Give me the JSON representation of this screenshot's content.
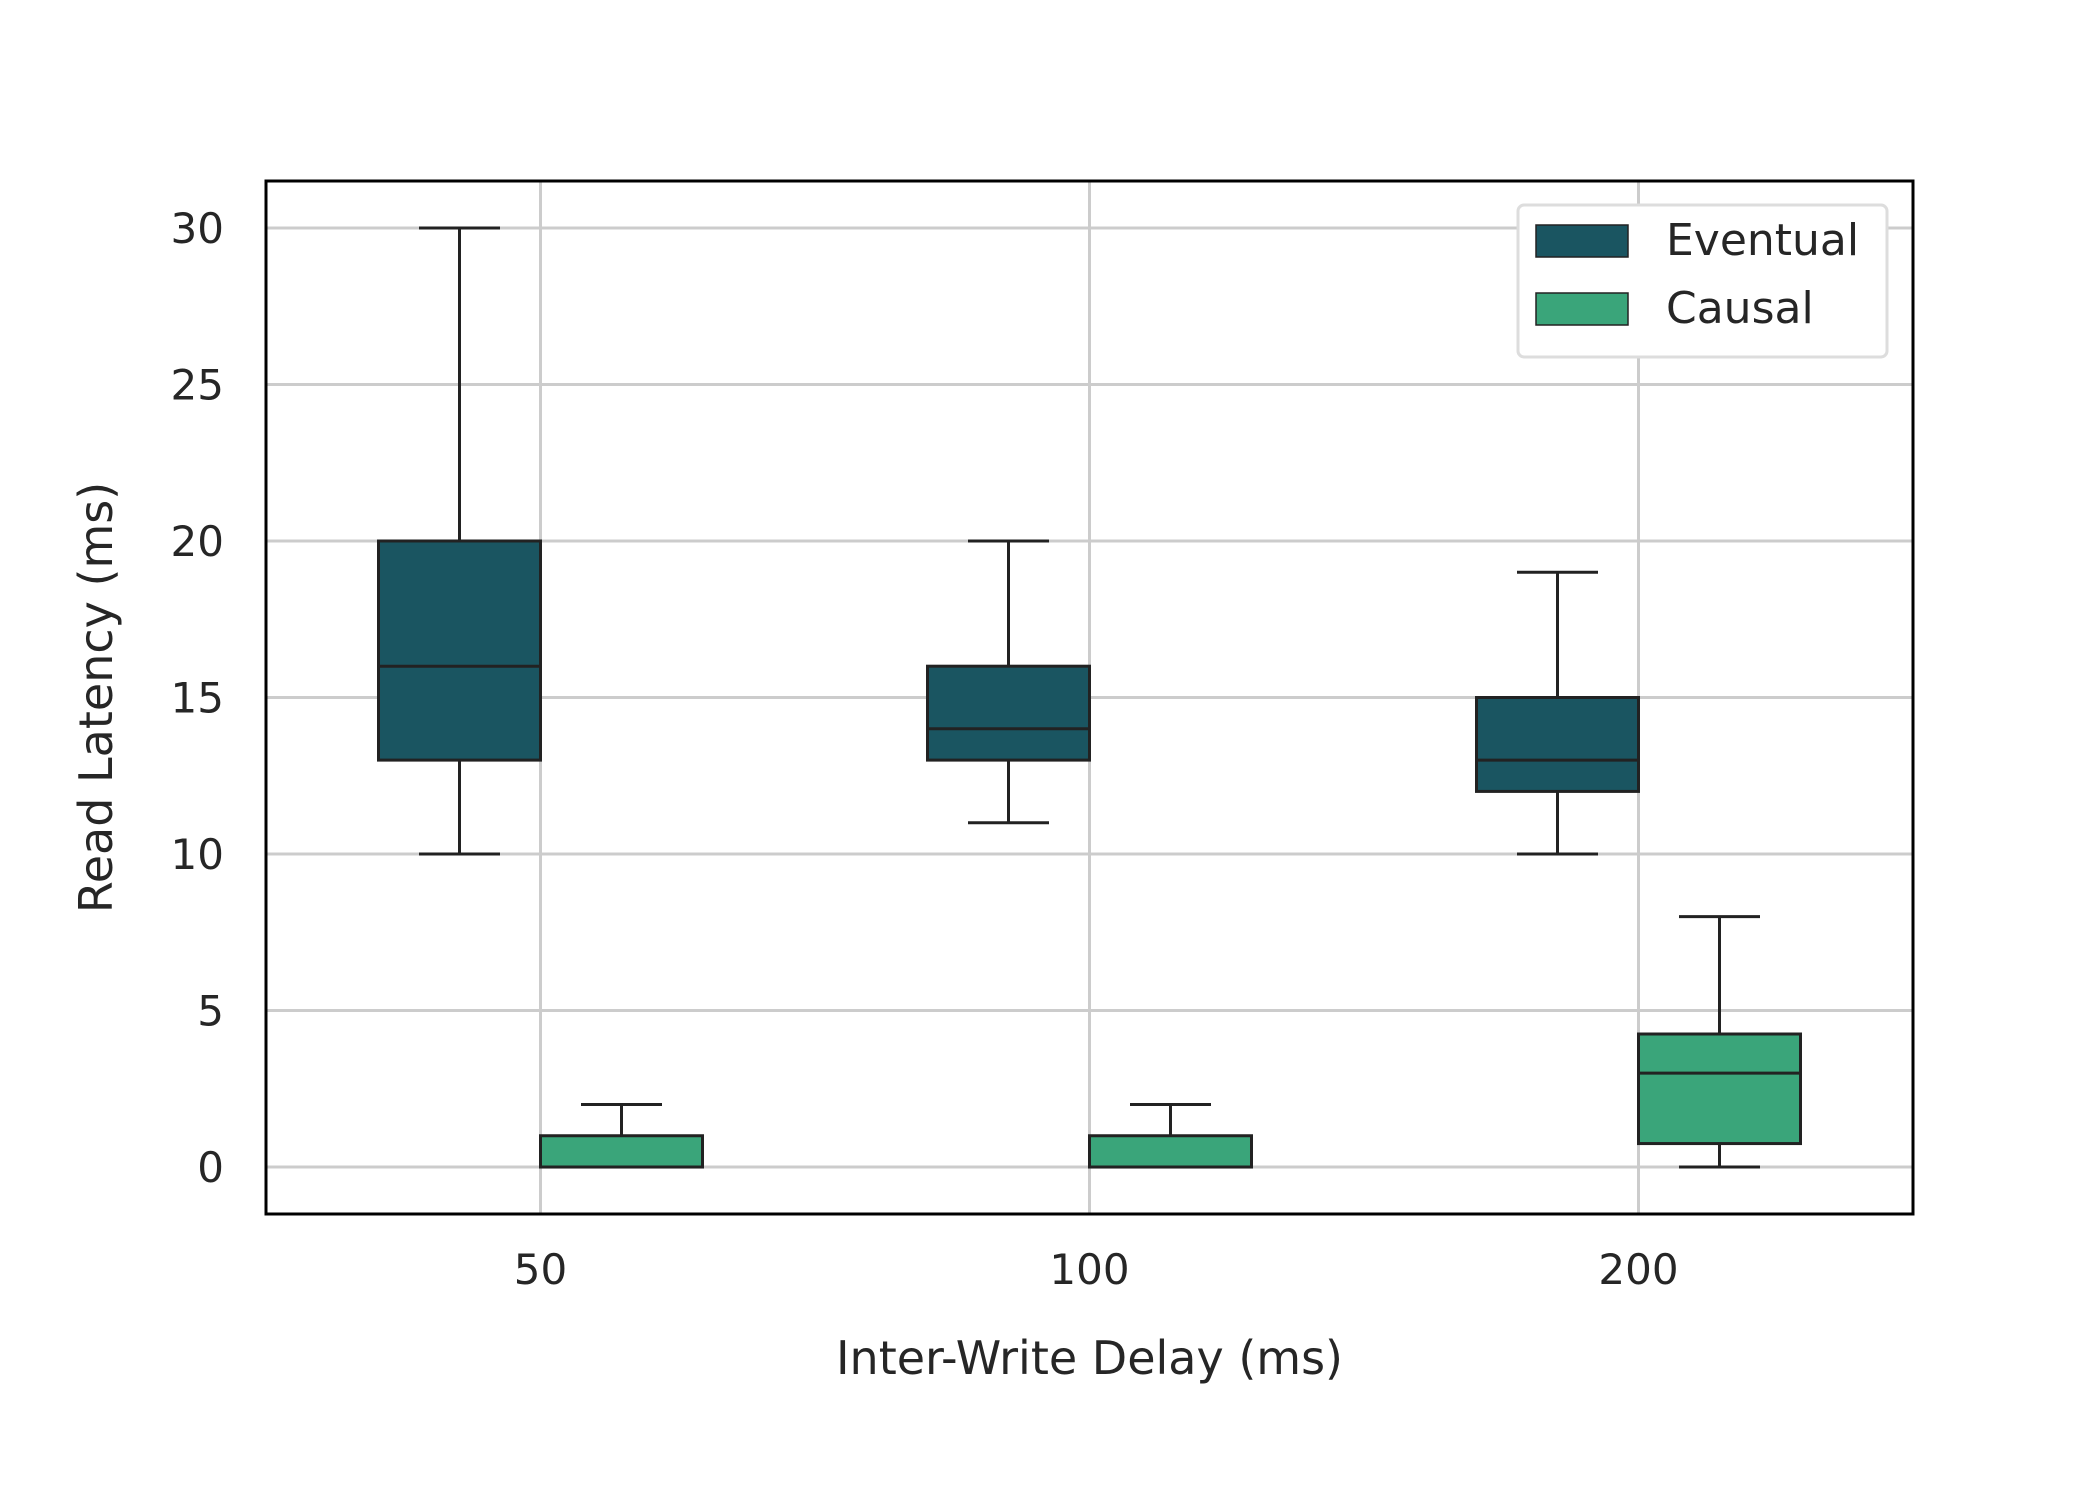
{
  "chart_data": {
    "type": "box",
    "title": "",
    "xlabel": "Inter-Write Delay (ms)",
    "ylabel": "Read Latency (ms)",
    "categories": [
      "50",
      "100",
      "200"
    ],
    "ylim": [
      -1.5,
      31.5
    ],
    "yticks": [
      0,
      5,
      10,
      15,
      20,
      25,
      30
    ],
    "grid": true,
    "legend_position": "top-right",
    "series": [
      {
        "name": "Eventual",
        "color": "#1a5561",
        "boxes": [
          {
            "whisker_low": 10,
            "q1": 13,
            "median": 16,
            "q3": 20,
            "whisker_high": 30
          },
          {
            "whisker_low": 11,
            "q1": 13,
            "median": 14,
            "q3": 16,
            "whisker_high": 20
          },
          {
            "whisker_low": 10,
            "q1": 12,
            "median": 13,
            "q3": 15,
            "whisker_high": 19
          }
        ]
      },
      {
        "name": "Causal",
        "color": "#3aa57a",
        "boxes": [
          {
            "whisker_low": 0,
            "q1": 0,
            "median": 0,
            "q3": 1,
            "whisker_high": 2
          },
          {
            "whisker_low": 0,
            "q1": 0,
            "median": 0,
            "q3": 1,
            "whisker_high": 2
          },
          {
            "whisker_low": 0,
            "q1": 0.75,
            "median": 3,
            "q3": 4.25,
            "whisker_high": 8
          }
        ]
      }
    ]
  }
}
